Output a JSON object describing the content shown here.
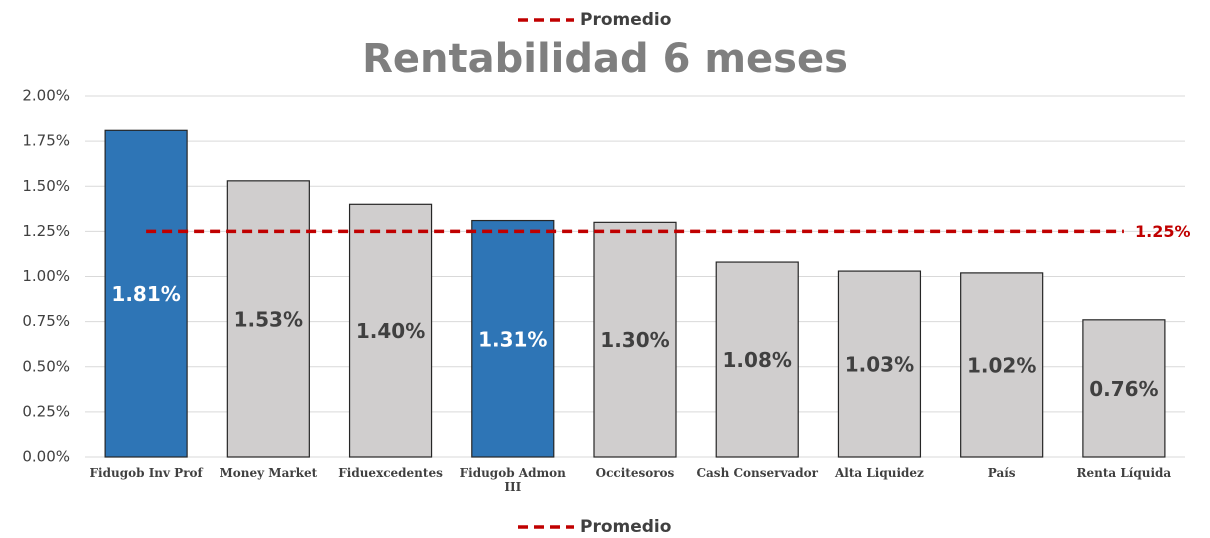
{
  "chart_data": {
    "type": "bar",
    "title": "Rentabilidad 6 meses",
    "categories": [
      "Fidugob Inv Prof",
      "Money Market",
      "Fiduexcedentes",
      "Fidugob Admon III",
      "Occitesoros",
      "Cash Conservador",
      "Alta Liquidez",
      "País",
      "Renta Líquida"
    ],
    "values": [
      1.81,
      1.53,
      1.4,
      1.31,
      1.3,
      1.08,
      1.03,
      1.02,
      0.76
    ],
    "value_labels": [
      "1.81%",
      "1.53%",
      "1.40%",
      "1.31%",
      "1.30%",
      "1.08%",
      "1.03%",
      "1.02%",
      "0.76%"
    ],
    "colors": [
      "#2e75b6",
      "#d0cece",
      "#d0cece",
      "#2e75b6",
      "#d0cece",
      "#d0cece",
      "#d0cece",
      "#d0cece",
      "#d0cece"
    ],
    "value_label_colors": [
      "#ffffff",
      "#404040",
      "#404040",
      "#ffffff",
      "#404040",
      "#404040",
      "#404040",
      "#404040",
      "#404040"
    ],
    "average": {
      "name": "Promedio",
      "value": 1.25,
      "value_label": "1.25%",
      "color": "#c00000"
    },
    "ylim": [
      0,
      2
    ],
    "yticks": [
      {
        "value": 0,
        "label": "0.00%"
      },
      {
        "value": 0.25,
        "label": "0.25%"
      },
      {
        "value": 0.5,
        "label": "0.50%"
      },
      {
        "value": 0.75,
        "label": "0.75%"
      },
      {
        "value": 1,
        "label": "1.00%"
      },
      {
        "value": 1.25,
        "label": "1.25%"
      },
      {
        "value": 1.5,
        "label": "1.50%"
      },
      {
        "value": 1.75,
        "label": "1.75%"
      },
      {
        "value": 2,
        "label": "2.00%"
      }
    ],
    "grid": true
  }
}
